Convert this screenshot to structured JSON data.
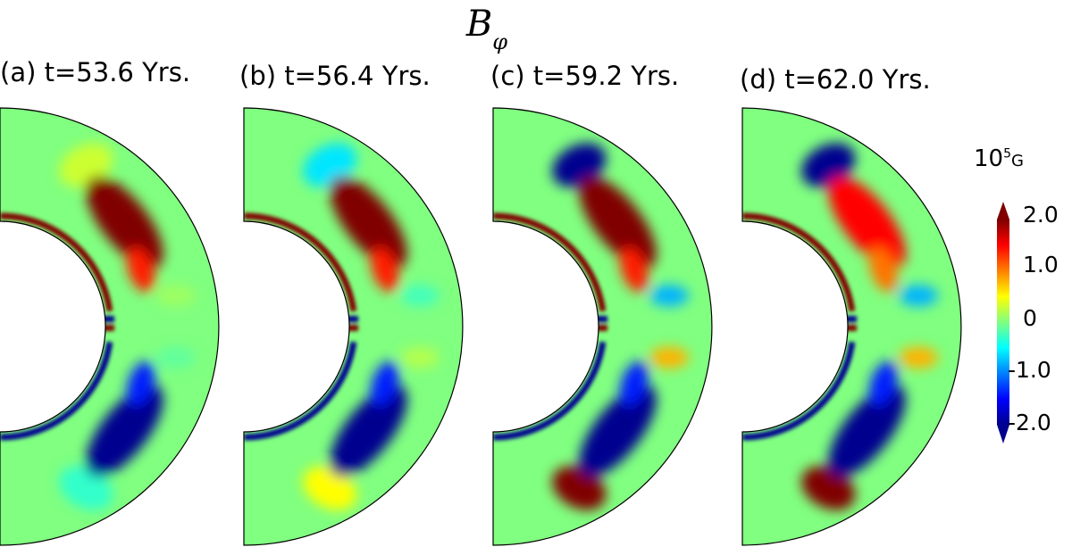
{
  "title": "B",
  "title_sub": "φ",
  "colorbar": {
    "unit_base": "10",
    "unit_exp": "5",
    "unit_rest": "G",
    "ticks": [
      "2.0",
      "1.0",
      "0",
      "-1.0",
      "-2.0"
    ],
    "tick_values": [
      2.0,
      1.0,
      0,
      -1.0,
      -2.0
    ],
    "range": [
      -2.0,
      2.0
    ],
    "colormap": "jet"
  },
  "chart_data": {
    "type": "heatmap",
    "title": "B_φ",
    "panels": [
      {
        "label": "(a)",
        "time": "t=53.6 Yrs.",
        "north": {
          "tach": 2.0,
          "belt": 2.0,
          "outer": 0.3
        },
        "south": {
          "tach": -2.0,
          "belt": -2.0,
          "outer": -0.3
        }
      },
      {
        "label": "(b)",
        "time": "t=56.4 Yrs.",
        "north": {
          "tach": 2.0,
          "belt": 2.0,
          "outer": -0.6
        },
        "south": {
          "tach": -2.0,
          "belt": -2.0,
          "outer": 0.5
        }
      },
      {
        "label": "(c)",
        "time": "t=59.2 Yrs.",
        "north": {
          "tach": 2.0,
          "belt": 2.0,
          "outer": -2.0
        },
        "south": {
          "tach": -2.0,
          "belt": -2.0,
          "outer": 2.0
        }
      },
      {
        "label": "(d)",
        "time": "t=62.0 Yrs.",
        "north": {
          "tach": 2.0,
          "belt": 1.5,
          "outer": -2.0
        },
        "south": {
          "tach": -2.0,
          "belt": -2.0,
          "outer": 2.0
        }
      }
    ]
  }
}
